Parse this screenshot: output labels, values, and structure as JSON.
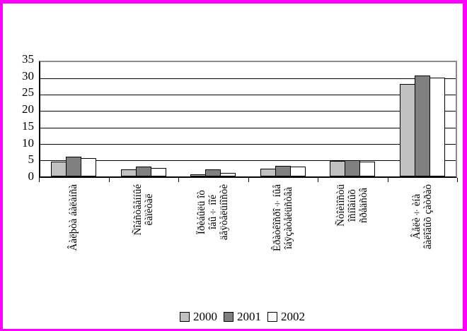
{
  "window": {
    "border_color": "#ff00ff",
    "background_color": "#ffffff"
  },
  "chart_data": {
    "type": "bar",
    "title": "",
    "xlabel": "",
    "ylabel": "",
    "ylim": [
      0,
      35
    ],
    "ytick_step": 5,
    "grid": true,
    "legend_position": "bottom",
    "categories": [
      "Âàëþòà áàëàíñà",
      "Ñîáñòâåííûé\nêàïèòàë",
      "Ïðèáûëü îò\nîáû÷íîé\näåÿòåëüíîñòè",
      "Êðàòêîñðî÷íûå\nîáÿçàòåëüñòâà",
      "Ñòîèìîñòü\nîñíîâíûõ\nñðåäñòâ",
      "Âåëè÷èíà\nâàëîâûõ çàòðàò"
    ],
    "series": [
      {
        "name": "2000",
        "color": "#c0c0c0",
        "values": [
          4.6,
          2.1,
          0.7,
          2.4,
          4.7,
          28.2
        ]
      },
      {
        "name": "2001",
        "color": "#808080",
        "values": [
          6.1,
          3.1,
          2.2,
          3.2,
          5.0,
          30.8
        ]
      },
      {
        "name": "2002",
        "color": "#ffffff",
        "values": [
          5.7,
          2.6,
          1.1,
          3.0,
          4.6,
          30.3
        ]
      }
    ],
    "colors": {
      "gridline": "#000000",
      "axis": "#000000",
      "plot_border": "#8c8c8c"
    }
  }
}
